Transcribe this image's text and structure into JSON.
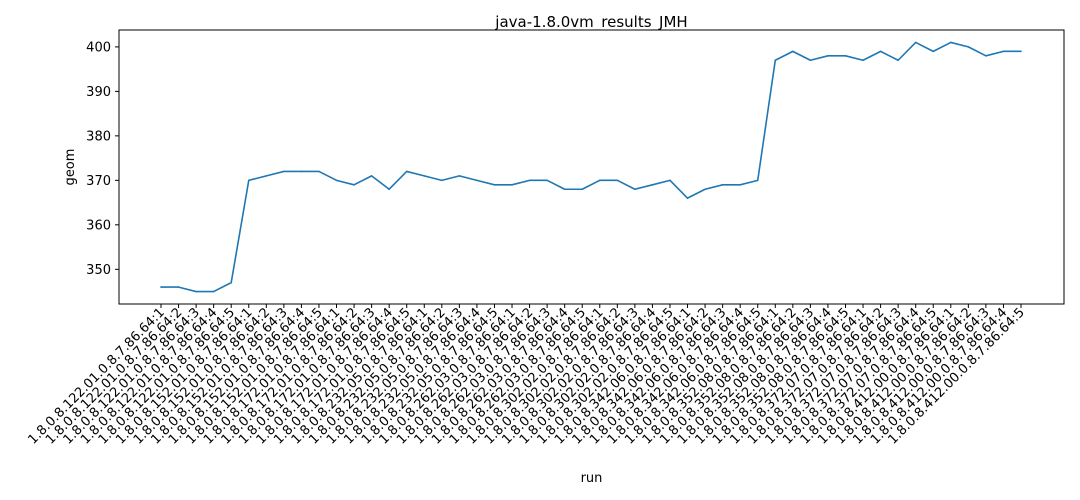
{
  "chart_data": {
    "type": "line",
    "title": "java-1.8.0vm_results_JMH",
    "xlabel": "run",
    "ylabel": "geom",
    "ylim": [
      342.2,
      403.8
    ],
    "yticks": [
      350,
      360,
      370,
      380,
      390,
      400
    ],
    "grid": false,
    "legend": "none",
    "line_color": "#1f77b4",
    "categories": [
      "1.8.0.8.122.01.0.8.7.86.64:1",
      "1.8.0.8.122.01.0.8.7.86.64:2",
      "1.8.0.8.122.01.0.8.7.86.64:3",
      "1.8.0.8.122.01.0.8.7.86.64:4",
      "1.8.0.8.122.01.0.8.7.86.64:5",
      "1.8.0.8.152.01.0.8.7.86.64:1",
      "1.8.0.8.152.01.0.8.7.86.64:2",
      "1.8.0.8.152.01.0.8.7.86.64:3",
      "1.8.0.8.152.01.0.8.7.86.64:4",
      "1.8.0.8.152.01.0.8.7.86.64:5",
      "1.8.0.8.172.01.0.8.7.86.64:1",
      "1.8.0.8.172.01.0.8.7.86.64:2",
      "1.8.0.8.172.01.0.8.7.86.64:3",
      "1.8.0.8.172.01.0.8.7.86.64:4",
      "1.8.0.8.172.01.0.8.7.86.64:5",
      "1.8.0.8.232.05.0.8.7.86.64:1",
      "1.8.0.8.232.05.0.8.7.86.64:2",
      "1.8.0.8.232.05.0.8.7.86.64:3",
      "1.8.0.8.232.05.0.8.7.86.64:4",
      "1.8.0.8.232.05.0.8.7.86.64:5",
      "1.8.0.8.262.03.0.8.7.86.64:1",
      "1.8.0.8.262.03.0.8.7.86.64:2",
      "1.8.0.8.262.03.0.8.7.86.64:3",
      "1.8.0.8.262.03.0.8.7.86.64:4",
      "1.8.0.8.262.03.0.8.7.86.64:5",
      "1.8.0.8.302.02.0.8.7.86.64:1",
      "1.8.0.8.302.02.0.8.7.86.64:2",
      "1.8.0.8.302.02.0.8.7.86.64:3",
      "1.8.0.8.302.02.0.8.7.86.64:4",
      "1.8.0.8.302.02.0.8.7.86.64:5",
      "1.8.0.8.342.06.0.8.7.86.64:1",
      "1.8.0.8.342.06.0.8.7.86.64:2",
      "1.8.0.8.342.06.0.8.7.86.64:3",
      "1.8.0.8.342.06.0.8.7.86.64:4",
      "1.8.0.8.342.06.0.8.7.86.64:5",
      "1.8.0.8.352.08.0.8.7.86.64:1",
      "1.8.0.8.352.08.0.8.7.86.64:2",
      "1.8.0.8.352.08.0.8.7.86.64:3",
      "1.8.0.8.352.08.0.8.7.86.64:4",
      "1.8.0.8.352.08.0.8.7.86.64:5",
      "1.8.0.8.372.07.0.8.7.86.64:1",
      "1.8.0.8.372.07.0.8.7.86.64:2",
      "1.8.0.8.372.07.0.8.7.86.64:3",
      "1.8.0.8.372.07.0.8.7.86.64:4",
      "1.8.0.8.372.07.0.8.7.86.64:5",
      "1.8.0.8.412.00.0.8.7.86.64:1",
      "1.8.0.8.412.00.0.8.7.86.64:2",
      "1.8.0.8.412.00.0.8.7.86.64:3",
      "1.8.0.8.412.00.0.8.7.86.64:4",
      "1.8.0.8.412.00.0.8.7.86.64:5"
    ],
    "values": [
      346,
      346,
      345,
      345,
      347,
      370,
      371,
      372,
      372,
      372,
      370,
      369,
      371,
      368,
      372,
      371,
      370,
      371,
      370,
      369,
      369,
      370,
      370,
      368,
      368,
      370,
      370,
      368,
      369,
      370,
      366,
      368,
      369,
      369,
      370,
      397,
      399,
      397,
      398,
      398,
      397,
      399,
      397,
      401,
      399,
      401,
      400,
      398,
      399,
      399
    ]
  }
}
